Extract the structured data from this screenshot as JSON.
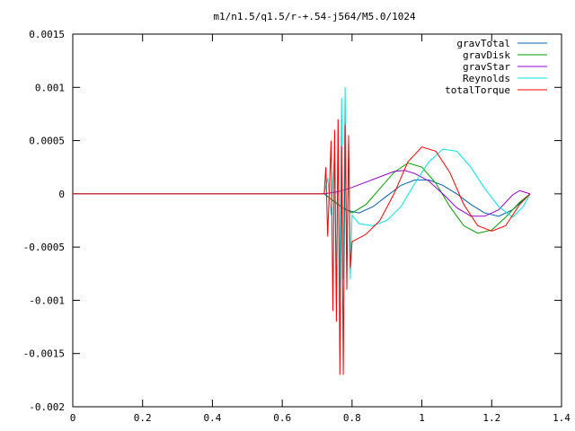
{
  "chart_data": {
    "type": "line",
    "title": "m1/n1.5/q1.5/r-+.54-j564/M5.0/1024",
    "xlabel": "",
    "ylabel": "",
    "xlim": [
      0,
      1.4
    ],
    "ylim": [
      -0.002,
      0.0015
    ],
    "x_ticks": [
      "0",
      "0.2",
      "0.4",
      "0.6",
      "0.8",
      "1",
      "1.2",
      "1.4"
    ],
    "y_ticks": [
      "0.0015",
      "0.001",
      "0.0005",
      "0",
      "-0.0005",
      "-0.001",
      "-0.0015",
      "-0.002"
    ],
    "grid": false,
    "legend_position": "top-right",
    "series": [
      {
        "name": "gravTotal",
        "color": "#0060ad",
        "points": [
          [
            0,
            0
          ],
          [
            0.72,
            0
          ],
          [
            0.74,
            -5e-05
          ],
          [
            0.78,
            -0.00015
          ],
          [
            0.82,
            -0.00018
          ],
          [
            0.86,
            -0.00012
          ],
          [
            0.9,
            -2e-05
          ],
          [
            0.94,
            8e-05
          ],
          [
            0.98,
            0.00013
          ],
          [
            1.02,
            0.00013
          ],
          [
            1.06,
            8e-05
          ],
          [
            1.1,
            0.0
          ],
          [
            1.14,
            -0.0001
          ],
          [
            1.18,
            -0.00018
          ],
          [
            1.22,
            -0.00021
          ],
          [
            1.26,
            -0.00015
          ],
          [
            1.31,
            0.0
          ]
        ]
      },
      {
        "name": "gravDisk",
        "color": "#009e00",
        "points": [
          [
            0,
            0
          ],
          [
            0.72,
            0
          ],
          [
            0.76,
            -0.0001
          ],
          [
            0.8,
            -0.00018
          ],
          [
            0.84,
            -0.0001
          ],
          [
            0.88,
            5e-05
          ],
          [
            0.92,
            0.0002
          ],
          [
            0.96,
            0.00029
          ],
          [
            1.0,
            0.00025
          ],
          [
            1.04,
            0.0001
          ],
          [
            1.08,
            -0.00012
          ],
          [
            1.12,
            -0.0003
          ],
          [
            1.16,
            -0.00037
          ],
          [
            1.2,
            -0.00034
          ],
          [
            1.24,
            -0.00022
          ],
          [
            1.28,
            -8e-05
          ],
          [
            1.31,
            0.0
          ]
        ]
      },
      {
        "name": "gravStar",
        "color": "#9400d3",
        "points": [
          [
            0,
            0
          ],
          [
            0.72,
            0
          ],
          [
            0.76,
            2e-05
          ],
          [
            0.8,
            6e-05
          ],
          [
            0.84,
            0.00011
          ],
          [
            0.88,
            0.00016
          ],
          [
            0.92,
            0.00021
          ],
          [
            0.95,
            0.00022
          ],
          [
            0.98,
            0.00019
          ],
          [
            1.02,
            0.00012
          ],
          [
            1.06,
            0.0
          ],
          [
            1.1,
            -0.00013
          ],
          [
            1.14,
            -0.00021
          ],
          [
            1.18,
            -0.00021
          ],
          [
            1.22,
            -0.00015
          ],
          [
            1.26,
            -1e-05
          ],
          [
            1.28,
            3e-05
          ],
          [
            1.31,
            0.0
          ]
        ]
      },
      {
        "name": "Reynolds",
        "color": "#00e5e5",
        "points": [
          [
            0,
            0
          ],
          [
            0.72,
            0
          ],
          [
            0.73,
            0.00015
          ],
          [
            0.74,
            -0.0002
          ],
          [
            0.75,
            0.0004
          ],
          [
            0.755,
            -0.0009
          ],
          [
            0.76,
            0.0007
          ],
          [
            0.765,
            -0.001
          ],
          [
            0.77,
            0.0009
          ],
          [
            0.775,
            -0.0008
          ],
          [
            0.78,
            0.001
          ],
          [
            0.785,
            -0.0006
          ],
          [
            0.79,
            0.0005
          ],
          [
            0.795,
            -0.0008
          ],
          [
            0.8,
            -0.0002
          ],
          [
            0.82,
            -0.00028
          ],
          [
            0.86,
            -0.0003
          ],
          [
            0.9,
            -0.00025
          ],
          [
            0.94,
            -0.00012
          ],
          [
            0.98,
            0.0001
          ],
          [
            1.02,
            0.0003
          ],
          [
            1.06,
            0.00042
          ],
          [
            1.1,
            0.0004
          ],
          [
            1.14,
            0.00025
          ],
          [
            1.18,
            5e-05
          ],
          [
            1.22,
            -0.00012
          ],
          [
            1.26,
            -0.00022
          ],
          [
            1.29,
            -0.00012
          ],
          [
            1.31,
            0.0
          ]
        ]
      },
      {
        "name": "totalTorque",
        "color": "#ff0000",
        "points": [
          [
            0,
            0
          ],
          [
            0.72,
            0
          ],
          [
            0.725,
            0.00025
          ],
          [
            0.73,
            -0.0004
          ],
          [
            0.74,
            0.0005
          ],
          [
            0.745,
            -0.0011
          ],
          [
            0.75,
            0.0006
          ],
          [
            0.755,
            -0.0012
          ],
          [
            0.76,
            0.0007
          ],
          [
            0.765,
            -0.0017
          ],
          [
            0.77,
            0.00045
          ],
          [
            0.775,
            -0.0017
          ],
          [
            0.78,
            0.00065
          ],
          [
            0.785,
            -0.0009
          ],
          [
            0.79,
            0.00055
          ],
          [
            0.795,
            -0.0007
          ],
          [
            0.8,
            -0.00045
          ],
          [
            0.84,
            -0.00038
          ],
          [
            0.88,
            -0.00025
          ],
          [
            0.92,
            0.0
          ],
          [
            0.96,
            0.0003
          ],
          [
            1.0,
            0.00044
          ],
          [
            1.04,
            0.0004
          ],
          [
            1.08,
            0.0002
          ],
          [
            1.12,
            -0.0001
          ],
          [
            1.16,
            -0.0003
          ],
          [
            1.2,
            -0.00035
          ],
          [
            1.24,
            -0.0003
          ],
          [
            1.28,
            -0.0001
          ],
          [
            1.31,
            0.0
          ]
        ]
      }
    ]
  }
}
